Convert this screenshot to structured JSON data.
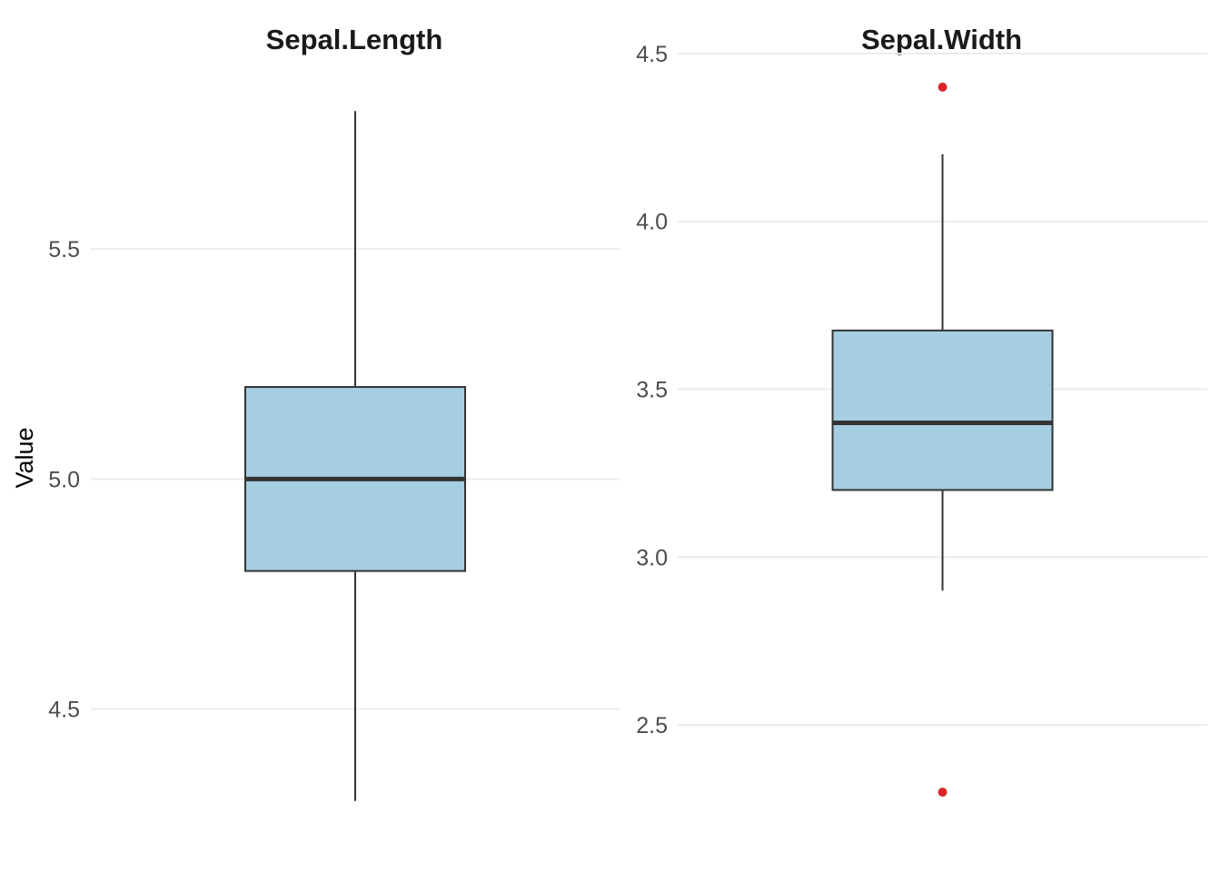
{
  "chart_data": {
    "type": "boxplot",
    "ylabel": "Value",
    "grid": true,
    "legend": "none",
    "colors": {
      "box_fill": "#a6cee3",
      "box_stroke": "#333333",
      "outlier": "#d7262b",
      "grid": "#ebebeb"
    },
    "panels": [
      {
        "title": "Sepal.Length",
        "ylim": [
          4.27,
          5.83
        ],
        "ticks": [
          4.5,
          5.0,
          5.5
        ],
        "tick_labels": [
          "4.5",
          "5.0",
          "5.5"
        ],
        "stats": {
          "min": 4.3,
          "q1": 4.8,
          "median": 5.0,
          "q3": 5.2,
          "max": 5.8
        },
        "outliers": []
      },
      {
        "title": "Sepal.Width",
        "ylim": [
          2.23,
          4.47
        ],
        "ticks": [
          2.5,
          3.0,
          3.5,
          4.0,
          4.5
        ],
        "tick_labels": [
          "2.5",
          "3.0",
          "3.5",
          "4.0",
          "4.5"
        ],
        "stats": {
          "min": 2.9,
          "q1": 3.2,
          "median": 3.4,
          "q3": 3.675,
          "max": 4.2
        },
        "outliers": [
          4.4,
          2.3
        ]
      }
    ]
  }
}
